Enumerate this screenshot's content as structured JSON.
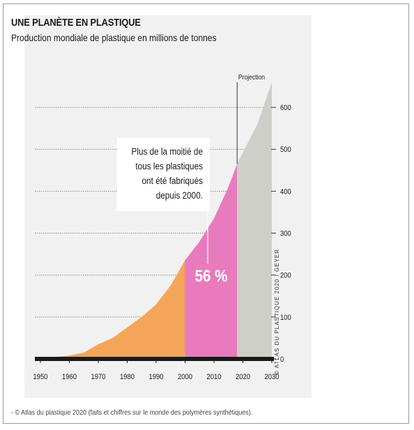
{
  "chart_data": {
    "type": "area",
    "title": "UNE PLANÈTE EN PLASTIQUE",
    "subtitle": "Production mondiale de plastique en millions de tonnes",
    "xlabel": "",
    "ylabel": "",
    "xlim": [
      1950,
      2030
    ],
    "ylim": [
      0,
      660
    ],
    "x_ticks": [
      1950,
      1960,
      1970,
      1980,
      1990,
      2000,
      2010,
      2020,
      2030
    ],
    "y_ticks": [
      0,
      100,
      200,
      300,
      400,
      500,
      600
    ],
    "grid": true,
    "curve": [
      {
        "x": 1950,
        "y": 2
      },
      {
        "x": 1955,
        "y": 5
      },
      {
        "x": 1960,
        "y": 8
      },
      {
        "x": 1965,
        "y": 15
      },
      {
        "x": 1970,
        "y": 35
      },
      {
        "x": 1975,
        "y": 50
      },
      {
        "x": 1980,
        "y": 75
      },
      {
        "x": 1985,
        "y": 100
      },
      {
        "x": 1990,
        "y": 130
      },
      {
        "x": 1995,
        "y": 175
      },
      {
        "x": 2000,
        "y": 235
      },
      {
        "x": 2005,
        "y": 280
      },
      {
        "x": 2010,
        "y": 335
      },
      {
        "x": 2015,
        "y": 410
      },
      {
        "x": 2018,
        "y": 465
      },
      {
        "x": 2025,
        "y": 560
      },
      {
        "x": 2030,
        "y": 660
      }
    ],
    "segments": [
      {
        "from": 1950,
        "to": 2000,
        "color": "#f5a55a"
      },
      {
        "from": 2000,
        "to": 2018,
        "color": "#e77bbd"
      },
      {
        "from": 2018,
        "to": 2030,
        "color": "#cfcfc9"
      }
    ],
    "projection_start": 2018,
    "projection_label": "Projection",
    "annotation": {
      "lines": [
        "Plus de la moitié de",
        "tous les plastiques",
        "ont été fabriqués",
        "depuis 2000."
      ],
      "value_label": "56 %"
    }
  },
  "credit": "© ATLAS DU PLASTIQUE 2020 / GEYER",
  "caption": "- © Atlas du plastique 2020 (faits et chiffres sur le monde des polymères synthétiques)."
}
